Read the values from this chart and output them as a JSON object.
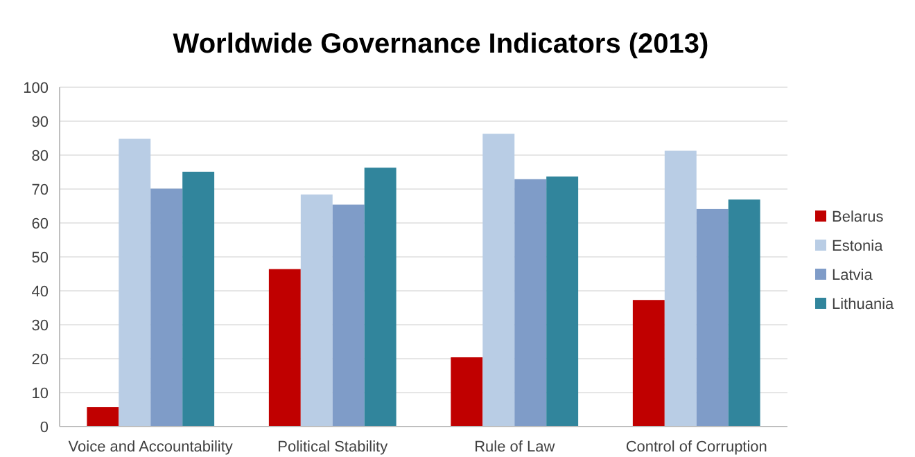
{
  "chart_data": {
    "type": "bar",
    "title": "Worldwide Governance Indicators (2013)",
    "categories": [
      "Voice and Accountability",
      "Political Stability",
      "Rule of Law",
      "Control of Corruption"
    ],
    "series": [
      {
        "name": "Belarus",
        "color": "#c00000",
        "values": [
          5.7,
          46.4,
          20.4,
          37.3
        ]
      },
      {
        "name": "Estonia",
        "color": "#b9cde5",
        "values": [
          84.8,
          68.4,
          86.3,
          81.3
        ]
      },
      {
        "name": "Latvia",
        "color": "#7f9cc8",
        "values": [
          70.1,
          65.4,
          72.9,
          64.1
        ]
      },
      {
        "name": "Lithuania",
        "color": "#31859c",
        "values": [
          75.1,
          76.3,
          73.7,
          66.9
        ]
      }
    ],
    "ylim": [
      0,
      100
    ],
    "yticks": [
      0,
      10,
      20,
      30,
      40,
      50,
      60,
      70,
      80,
      90,
      100
    ],
    "grid": "y",
    "legend": "right"
  }
}
